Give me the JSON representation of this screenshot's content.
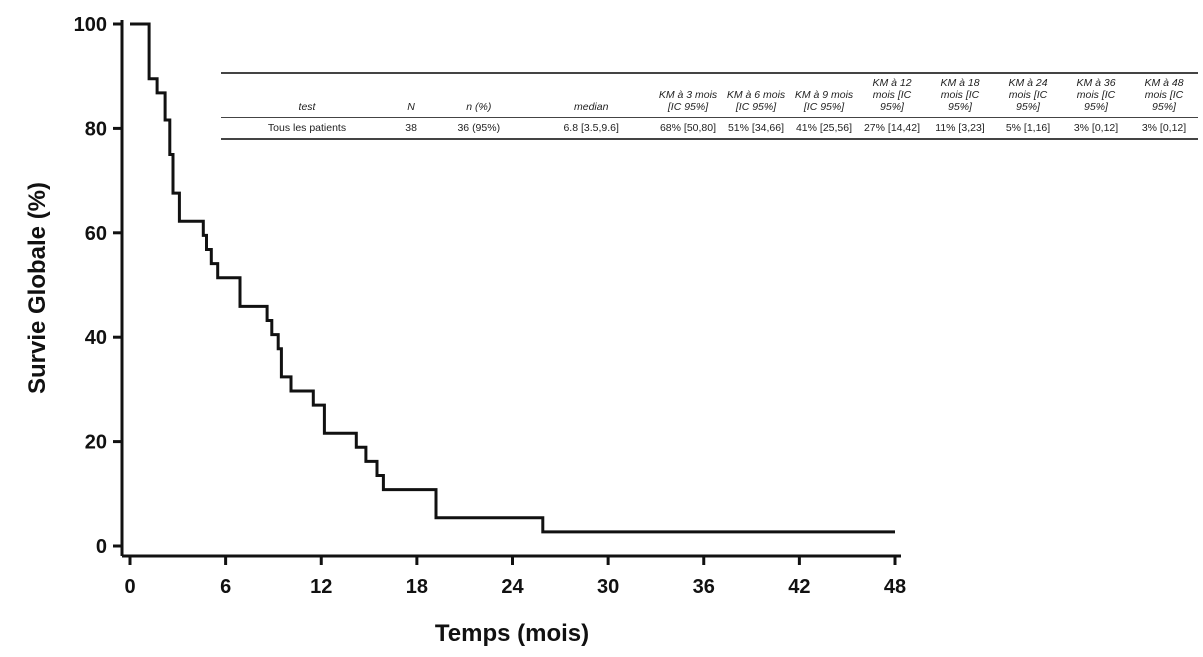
{
  "chart_data": {
    "type": "line",
    "xlabel": "Temps (mois)",
    "ylabel": "Survie Globale (%)",
    "xlim": [
      0,
      48
    ],
    "ylim": [
      0,
      100
    ],
    "xticks": [
      "0",
      "6",
      "12",
      "18",
      "24",
      "30",
      "36",
      "42",
      "48"
    ],
    "yticks": [
      "0",
      "20",
      "40",
      "60",
      "80",
      "100"
    ],
    "step": true,
    "series": [
      {
        "x": [
          0,
          1.2,
          1.2,
          1.7,
          1.7,
          2.2,
          2.2,
          2.5,
          2.5,
          2.7,
          2.7,
          2.9,
          2.9,
          3.1,
          3.1,
          3.6,
          3.6,
          4.6,
          4.6,
          4.8,
          4.8,
          5.1,
          5.1,
          5.5,
          5.5,
          6.9,
          6.9,
          8.6,
          8.6,
          8.9,
          8.9,
          9.3,
          9.3,
          9.5,
          9.5,
          10.1,
          10.1,
          11.5,
          11.5,
          12.2,
          12.2,
          14.2,
          14.2,
          14.8,
          14.8,
          15.5,
          15.5,
          15.9,
          15.9,
          19.2,
          19.2,
          25.9,
          25.9,
          48
        ],
        "y": [
          100,
          100,
          89.5,
          89.5,
          86.8,
          86.8,
          81.6,
          81.6,
          75,
          75,
          67.6,
          67.6,
          67.6,
          67.6,
          62.2,
          62.2,
          62.2,
          62.2,
          59.5,
          59.5,
          56.8,
          56.8,
          54.1,
          54.1,
          51.4,
          51.4,
          45.9,
          45.9,
          43.2,
          43.2,
          40.5,
          40.5,
          37.8,
          37.8,
          32.4,
          32.4,
          29.7,
          29.7,
          27.0,
          27.0,
          21.6,
          21.6,
          18.9,
          18.9,
          16.2,
          16.2,
          13.5,
          13.5,
          10.8,
          10.8,
          5.4,
          5.4,
          2.7,
          2.7
        ]
      }
    ]
  },
  "table": {
    "headers": [
      "test",
      "N",
      "n (%)",
      "median",
      "KM à 3 mois [IC 95%]",
      "KM à 6 mois [IC 95%]",
      "KM à 9 mois [IC 95%]",
      "KM à 12 mois [IC 95%]",
      "KM à 18 mois [IC 95%]",
      "KM à 24 mois [IC 95%]",
      "KM à 36 mois [IC 95%]",
      "KM à 48 mois [IC 95%]"
    ],
    "rows": [
      [
        "Tous les patients",
        "38",
        "36 (95%)",
        "6.8 [3.5,9.6]",
        "68% [50,80]",
        "51% [34,66]",
        "41% [25,56]",
        "27% [14,42]",
        "11% [3,23]",
        "5% [1,16]",
        "3% [0,12]",
        "3% [0,12]"
      ]
    ]
  },
  "colors": {
    "line": "#111111",
    "axis": "#111111"
  }
}
